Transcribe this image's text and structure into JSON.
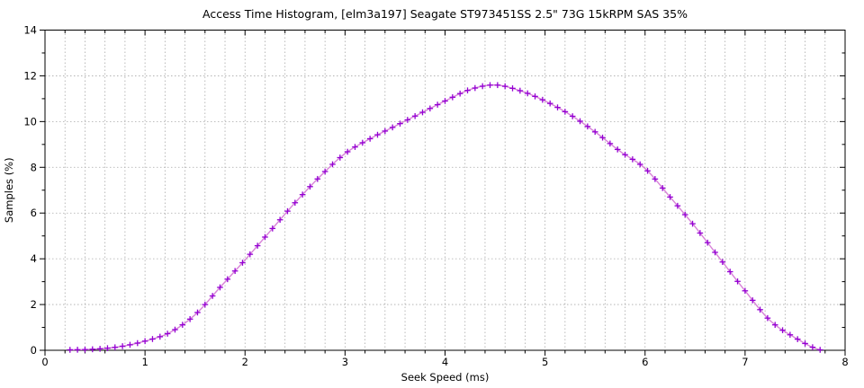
{
  "chart_data": {
    "type": "line",
    "title": "Access Time Histogram, [elm3a197] Seagate ST973451SS 2.5\" 73G 15kRPM SAS 35%",
    "xlabel": "Seek Speed (ms)",
    "ylabel": "Samples (%)",
    "xlim": [
      0,
      8
    ],
    "ylim": [
      0,
      14
    ],
    "x_major_ticks": [
      0,
      1,
      2,
      3,
      4,
      5,
      6,
      7,
      8
    ],
    "y_major_ticks": [
      0,
      2,
      4,
      6,
      8,
      10,
      12,
      14
    ],
    "x_minor_step": 0.2,
    "y_minor_step": 1,
    "grid": {
      "vertical_step": 0.2,
      "horizontal_step": 2,
      "style": "dotted",
      "color": "#a9a9a9"
    },
    "legend": "none",
    "border_color": "#000000",
    "series": [
      {
        "name": "seek-time-histogram",
        "marker": "plus",
        "marker_color": "#9400d3",
        "line_color": "#d883d8",
        "marker_x_start": 0.25,
        "marker_x_step": 0.075,
        "marker_x_end": 7.75,
        "x": [
          0.25,
          0.5,
          0.75,
          1.0,
          1.25,
          1.5,
          1.75,
          2.0,
          2.25,
          2.5,
          2.75,
          3.0,
          3.25,
          3.5,
          3.75,
          4.0,
          4.25,
          4.5,
          4.75,
          5.0,
          5.25,
          5.5,
          5.75,
          6.0,
          6.25,
          6.5,
          6.75,
          7.0,
          7.25,
          7.5,
          7.75
        ],
        "y": [
          0.02,
          0.05,
          0.16,
          0.4,
          0.78,
          1.55,
          2.75,
          3.95,
          5.2,
          6.45,
          7.6,
          8.6,
          9.25,
          9.8,
          10.35,
          10.9,
          11.4,
          11.6,
          11.35,
          10.9,
          10.3,
          9.55,
          8.7,
          7.95,
          6.7,
          5.4,
          4.0,
          2.6,
          1.3,
          0.55,
          0.02
        ],
        "peak": {
          "x": 4.5,
          "y": 11.6
        }
      }
    ]
  }
}
